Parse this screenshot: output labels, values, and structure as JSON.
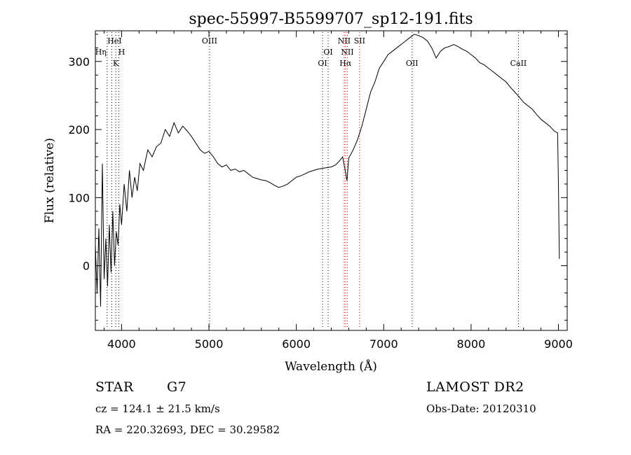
{
  "chart_data": {
    "type": "line",
    "title": "spec-55997-B5599707_sp12-191.fits",
    "xlabel": "Wavelength (Å)",
    "ylabel": "Flux (relative)",
    "xlim": [
      3700,
      9100
    ],
    "ylim": [
      -95,
      345
    ],
    "x_ticks": [
      4000,
      5000,
      6000,
      7000,
      8000,
      9000
    ],
    "y_ticks": [
      0,
      100,
      200,
      300
    ],
    "grid": false,
    "series": [
      {
        "color": "#000000",
        "x": [
          3700,
          3720,
          3740,
          3760,
          3780,
          3800,
          3820,
          3840,
          3860,
          3880,
          3900,
          3920,
          3940,
          3960,
          3980,
          4000,
          4030,
          4060,
          4090,
          4120,
          4150,
          4180,
          4210,
          4250,
          4300,
          4350,
          4400,
          4450,
          4500,
          4550,
          4600,
          4650,
          4700,
          4750,
          4800,
          4850,
          4900,
          4950,
          5000,
          5050,
          5100,
          5150,
          5200,
          5250,
          5300,
          5350,
          5400,
          5450,
          5500,
          5550,
          5600,
          5650,
          5700,
          5750,
          5800,
          5850,
          5900,
          5950,
          6000,
          6050,
          6100,
          6150,
          6200,
          6250,
          6300,
          6350,
          6400,
          6450,
          6500,
          6530,
          6560,
          6580,
          6600,
          6650,
          6700,
          6750,
          6800,
          6850,
          6900,
          6950,
          7000,
          7050,
          7100,
          7150,
          7200,
          7250,
          7300,
          7350,
          7400,
          7450,
          7500,
          7550,
          7600,
          7650,
          7700,
          7750,
          7800,
          7850,
          7900,
          7950,
          8000,
          8050,
          8100,
          8150,
          8200,
          8250,
          8300,
          8350,
          8400,
          8450,
          8500,
          8550,
          8600,
          8650,
          8700,
          8750,
          8800,
          8850,
          8900,
          8950,
          8990,
          9000,
          9010
        ],
        "y": [
          30,
          -40,
          55,
          -60,
          150,
          -20,
          40,
          -30,
          60,
          -10,
          80,
          0,
          50,
          30,
          90,
          60,
          120,
          80,
          140,
          100,
          130,
          110,
          150,
          140,
          170,
          160,
          175,
          180,
          200,
          190,
          210,
          195,
          205,
          198,
          190,
          180,
          170,
          165,
          168,
          160,
          150,
          145,
          148,
          140,
          142,
          138,
          140,
          135,
          130,
          128,
          126,
          125,
          122,
          118,
          115,
          117,
          120,
          125,
          130,
          132,
          135,
          138,
          140,
          142,
          143,
          144,
          145,
          148,
          155,
          160,
          140,
          125,
          158,
          170,
          185,
          205,
          230,
          255,
          270,
          290,
          300,
          310,
          315,
          320,
          325,
          330,
          335,
          340,
          338,
          335,
          330,
          320,
          305,
          315,
          320,
          322,
          325,
          322,
          318,
          315,
          310,
          305,
          298,
          295,
          290,
          285,
          280,
          275,
          270,
          262,
          255,
          248,
          240,
          235,
          230,
          222,
          215,
          210,
          205,
          198,
          195,
          120,
          10
        ]
      }
    ],
    "lines": [
      {
        "label": "HeI",
        "x": 3888,
        "color": "#000000"
      },
      {
        "label": "Hη",
        "x": 3835,
        "color": "#000000"
      },
      {
        "label": "H",
        "x": 3969,
        "color": "#000000"
      },
      {
        "label": "K",
        "x": 3934,
        "color": "#000000"
      },
      {
        "label": "OIII",
        "x": 5007,
        "color": "#000000"
      },
      {
        "label": "OI",
        "x": 6364,
        "color": "#000000"
      },
      {
        "label": "OI",
        "x": 6300,
        "color": "#000000"
      },
      {
        "label": "NII",
        "x": 6548,
        "color": "#cc0000"
      },
      {
        "label": "NII",
        "x": 6584,
        "color": "#cc0000"
      },
      {
        "label": "Hα",
        "x": 6563,
        "color": "#cc0000"
      },
      {
        "label": "SII",
        "x": 6724,
        "color": "#cc0000"
      },
      {
        "label": "OII",
        "x": 7325,
        "color": "#000000"
      },
      {
        "label": "CaII",
        "x": 8542,
        "color": "#000000"
      }
    ]
  },
  "info": {
    "object_class": "STAR",
    "subclass": "G7",
    "cz": "cz = 124.1 ± 21.5 km/s",
    "coords": "RA = 220.32693, DEC =  30.29582",
    "survey": "LAMOST DR2",
    "obs_date": "Obs-Date: 20120310"
  }
}
